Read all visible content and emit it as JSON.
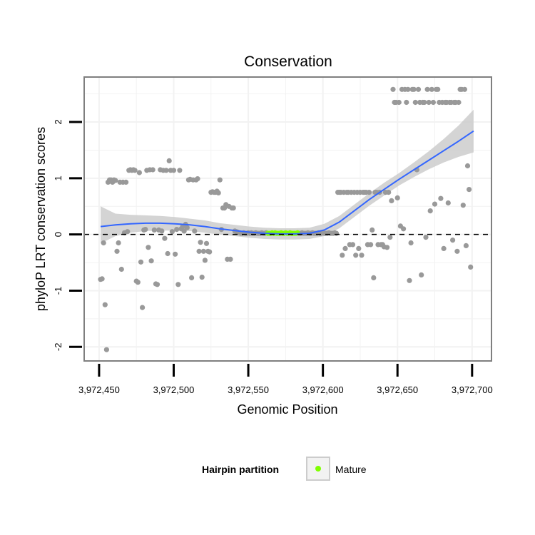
{
  "chart_data": {
    "type": "scatter",
    "title": "Conservation",
    "xlabel": "Genomic Position",
    "ylabel": "phyloP LRT conservation scores",
    "xlim": [
      3972440,
      3972713
    ],
    "ylim": [
      -2.25,
      2.8
    ],
    "xticks": [
      3972450,
      3972500,
      3972550,
      3972600,
      3972650,
      3972700
    ],
    "xtick_labels": [
      "3,972,450",
      "3,972,500",
      "3,972,550",
      "3,972,600",
      "3,972,650",
      "3,972,700"
    ],
    "yticks": [
      -2,
      -1,
      0,
      1,
      2
    ],
    "ytick_labels": [
      "-2",
      "-1",
      "0",
      "1",
      "2"
    ],
    "grid": true,
    "reference_line": {
      "y": 0,
      "style": "dashed"
    },
    "colors": {
      "points": "#999999",
      "mature": "#7fff00",
      "smooth": "#3366ff",
      "band": "#cccccc",
      "panel_border": "#7f7f7f",
      "grid": "#f2f2f2"
    },
    "points": [
      [
        3972451,
        -0.8
      ],
      [
        3972452,
        -0.79
      ],
      [
        3972453,
        -0.15
      ],
      [
        3972454,
        -1.25
      ],
      [
        3972455,
        -2.05
      ],
      [
        3972456,
        0.93
      ],
      [
        3972457,
        0.97
      ],
      [
        3972458,
        0.97
      ],
      [
        3972459,
        0.93
      ],
      [
        3972460,
        0.97
      ],
      [
        3972461,
        0.96
      ],
      [
        3972462,
        -0.3
      ],
      [
        3972463,
        -0.15
      ],
      [
        3972464,
        0.93
      ],
      [
        3972465,
        -0.62
      ],
      [
        3972466,
        0.93
      ],
      [
        3972467,
        0.03
      ],
      [
        3972468,
        0.93
      ],
      [
        3972469,
        0.05
      ],
      [
        3972470,
        1.14
      ],
      [
        3972471,
        1.15
      ],
      [
        3972472,
        1.14
      ],
      [
        3972473,
        1.15
      ],
      [
        3972474,
        1.14
      ],
      [
        3972475,
        -0.83
      ],
      [
        3972476,
        -0.85
      ],
      [
        3972477,
        1.1
      ],
      [
        3972478,
        -0.49
      ],
      [
        3972479,
        -1.3
      ],
      [
        3972480,
        0.08
      ],
      [
        3972481,
        0.09
      ],
      [
        3972482,
        1.14
      ],
      [
        3972483,
        -0.23
      ],
      [
        3972484,
        1.15
      ],
      [
        3972485,
        -0.47
      ],
      [
        3972486,
        1.15
      ],
      [
        3972487,
        0.08
      ],
      [
        3972488,
        -0.88
      ],
      [
        3972489,
        -0.89
      ],
      [
        3972490,
        0.08
      ],
      [
        3972491,
        1.15
      ],
      [
        3972492,
        0.06
      ],
      [
        3972493,
        1.14
      ],
      [
        3972494,
        -0.07
      ],
      [
        3972495,
        1.14
      ],
      [
        3972496,
        -0.34
      ],
      [
        3972497,
        1.31
      ],
      [
        3972498,
        1.14
      ],
      [
        3972499,
        0.05
      ],
      [
        3972500,
        1.14
      ],
      [
        3972501,
        -0.35
      ],
      [
        3972502,
        0.09
      ],
      [
        3972503,
        -0.89
      ],
      [
        3972504,
        1.14
      ],
      [
        3972505,
        0.1
      ],
      [
        3972506,
        0.14
      ],
      [
        3972507,
        0.06
      ],
      [
        3972508,
        0.18
      ],
      [
        3972509,
        0.12
      ],
      [
        3972510,
        0.97
      ],
      [
        3972511,
        0.98
      ],
      [
        3972512,
        -0.77
      ],
      [
        3972513,
        0.97
      ],
      [
        3972514,
        0.06
      ],
      [
        3972515,
        0.97
      ],
      [
        3972516,
        0.99
      ],
      [
        3972517,
        -0.3
      ],
      [
        3972518,
        -0.14
      ],
      [
        3972519,
        -0.76
      ],
      [
        3972520,
        -0.3
      ],
      [
        3972521,
        -0.46
      ],
      [
        3972522,
        -0.16
      ],
      [
        3972523,
        -0.3
      ],
      [
        3972524,
        -0.31
      ],
      [
        3972525,
        0.75
      ],
      [
        3972526,
        0.76
      ],
      [
        3972527,
        0.75
      ],
      [
        3972528,
        0.75
      ],
      [
        3972529,
        0.77
      ],
      [
        3972530,
        0.74
      ],
      [
        3972531,
        0.97
      ],
      [
        3972532,
        0.09
      ],
      [
        3972533,
        0.47
      ],
      [
        3972534,
        0.47
      ],
      [
        3972535,
        0.53
      ],
      [
        3972536,
        -0.44
      ],
      [
        3972537,
        0.5
      ],
      [
        3972538,
        -0.44
      ],
      [
        3972539,
        0.47
      ],
      [
        3972540,
        0.47
      ],
      [
        3972541,
        0.06
      ],
      [
        3972542,
        0.05
      ],
      [
        3972543,
        0.04
      ],
      [
        3972544,
        0.03
      ],
      [
        3972545,
        0.02
      ],
      [
        3972546,
        0.02
      ],
      [
        3972547,
        0.03
      ],
      [
        3972548,
        0.02
      ],
      [
        3972549,
        0.02
      ],
      [
        3972550,
        0.03
      ],
      [
        3972551,
        0.02
      ],
      [
        3972552,
        0.03
      ],
      [
        3972553,
        0.02
      ],
      [
        3972554,
        0.02
      ],
      [
        3972555,
        0.03
      ],
      [
        3972556,
        0.02
      ],
      [
        3972557,
        0.02
      ],
      [
        3972558,
        0.02
      ],
      [
        3972559,
        0.03
      ],
      [
        3972560,
        0.02
      ],
      [
        3972561,
        0.02
      ],
      [
        3972562,
        0.03
      ],
      [
        3972563,
        0.02
      ],
      [
        3972564,
        0.02
      ],
      [
        3972565,
        0.02
      ],
      [
        3972566,
        0.03
      ],
      [
        3972567,
        0.02
      ],
      [
        3972568,
        0.03
      ],
      [
        3972569,
        0.02
      ],
      [
        3972570,
        0.02
      ],
      [
        3972571,
        0.02
      ],
      [
        3972572,
        0.03
      ],
      [
        3972573,
        0.02
      ],
      [
        3972574,
        0.02
      ],
      [
        3972575,
        0.03
      ],
      [
        3972576,
        0.02
      ],
      [
        3972577,
        0.02
      ],
      [
        3972578,
        0.03
      ],
      [
        3972579,
        0.02
      ],
      [
        3972580,
        0.02
      ],
      [
        3972581,
        0.02
      ],
      [
        3972582,
        0.02
      ],
      [
        3972583,
        0.03
      ],
      [
        3972584,
        0.02
      ],
      [
        3972585,
        0.02
      ],
      [
        3972586,
        0.03
      ],
      [
        3972587,
        0.02
      ],
      [
        3972588,
        0.02
      ],
      [
        3972589,
        0.02
      ],
      [
        3972590,
        0.03
      ],
      [
        3972591,
        0.02
      ],
      [
        3972592,
        0.02
      ],
      [
        3972593,
        0.03
      ],
      [
        3972594,
        0.02
      ],
      [
        3972595,
        0.02
      ],
      [
        3972596,
        0.02
      ],
      [
        3972597,
        0.03
      ],
      [
        3972598,
        0.02
      ],
      [
        3972599,
        0.02
      ],
      [
        3972600,
        0.03
      ],
      [
        3972601,
        0.02
      ],
      [
        3972602,
        0.02
      ],
      [
        3972603,
        0.02
      ],
      [
        3972604,
        0.03
      ],
      [
        3972605,
        0.02
      ],
      [
        3972606,
        0.02
      ],
      [
        3972607,
        0.02
      ],
      [
        3972608,
        0.03
      ],
      [
        3972609,
        0.02
      ],
      [
        3972610,
        0.75
      ],
      [
        3972611,
        0.75
      ],
      [
        3972612,
        0.75
      ],
      [
        3972613,
        -0.37
      ],
      [
        3972614,
        0.75
      ],
      [
        3972615,
        -0.25
      ],
      [
        3972616,
        0.75
      ],
      [
        3972617,
        0.75
      ],
      [
        3972618,
        -0.18
      ],
      [
        3972619,
        0.75
      ],
      [
        3972620,
        -0.18
      ],
      [
        3972621,
        0.75
      ],
      [
        3972622,
        -0.37
      ],
      [
        3972623,
        0.75
      ],
      [
        3972624,
        -0.25
      ],
      [
        3972625,
        0.75
      ],
      [
        3972626,
        -0.37
      ],
      [
        3972627,
        0.75
      ],
      [
        3972628,
        0.75
      ],
      [
        3972629,
        0.75
      ],
      [
        3972630,
        -0.18
      ],
      [
        3972631,
        0.75
      ],
      [
        3972632,
        -0.18
      ],
      [
        3972633,
        0.08
      ],
      [
        3972634,
        -0.77
      ],
      [
        3972635,
        0.75
      ],
      [
        3972636,
        0.75
      ],
      [
        3972637,
        -0.18
      ],
      [
        3972638,
        0.75
      ],
      [
        3972639,
        -0.18
      ],
      [
        3972640,
        -0.18
      ],
      [
        3972641,
        -0.22
      ],
      [
        3972642,
        0.75
      ],
      [
        3972643,
        -0.23
      ],
      [
        3972644,
        0.75
      ],
      [
        3972645,
        -0.05
      ],
      [
        3972646,
        0.6
      ],
      [
        3972647,
        2.58
      ],
      [
        3972648,
        2.35
      ],
      [
        3972649,
        2.35
      ],
      [
        3972650,
        0.65
      ],
      [
        3972651,
        2.35
      ],
      [
        3972652,
        0.15
      ],
      [
        3972653,
        2.58
      ],
      [
        3972654,
        0.1
      ],
      [
        3972655,
        2.58
      ],
      [
        3972656,
        2.35
      ],
      [
        3972657,
        2.58
      ],
      [
        3972658,
        -0.82
      ],
      [
        3972659,
        -0.15
      ],
      [
        3972660,
        2.58
      ],
      [
        3972661,
        2.58
      ],
      [
        3972662,
        2.35
      ],
      [
        3972663,
        1.15
      ],
      [
        3972664,
        2.58
      ],
      [
        3972665,
        2.35
      ],
      [
        3972666,
        -0.72
      ],
      [
        3972667,
        2.35
      ],
      [
        3972668,
        2.35
      ],
      [
        3972669,
        -0.05
      ],
      [
        3972670,
        2.58
      ],
      [
        3972671,
        2.35
      ],
      [
        3972672,
        0.42
      ],
      [
        3972673,
        2.58
      ],
      [
        3972674,
        2.35
      ],
      [
        3972675,
        0.54
      ],
      [
        3972676,
        2.58
      ],
      [
        3972677,
        2.58
      ],
      [
        3972678,
        2.35
      ],
      [
        3972679,
        0.64
      ],
      [
        3972680,
        2.35
      ],
      [
        3972681,
        -0.25
      ],
      [
        3972682,
        2.35
      ],
      [
        3972683,
        2.35
      ],
      [
        3972684,
        0.56
      ],
      [
        3972685,
        2.35
      ],
      [
        3972686,
        2.35
      ],
      [
        3972687,
        -0.1
      ],
      [
        3972688,
        2.35
      ],
      [
        3972689,
        2.35
      ],
      [
        3972690,
        -0.3
      ],
      [
        3972691,
        2.35
      ],
      [
        3972692,
        2.58
      ],
      [
        3972693,
        2.58
      ],
      [
        3972694,
        0.52
      ],
      [
        3972695,
        2.58
      ],
      [
        3972696,
        -0.2
      ],
      [
        3972697,
        1.22
      ],
      [
        3972698,
        0.8
      ],
      [
        3972699,
        -0.58
      ]
    ],
    "mature_range": [
      3972563,
      3972583
    ],
    "smooth": {
      "x": [
        3972451,
        3972461,
        3972471,
        3972481,
        3972491,
        3972501,
        3972511,
        3972521,
        3972531,
        3972541,
        3972551,
        3972561,
        3972571,
        3972581,
        3972591,
        3972601,
        3972611,
        3972621,
        3972631,
        3972641,
        3972651,
        3972661,
        3972671,
        3972681,
        3972691,
        3972701
      ],
      "y": [
        0.14,
        0.17,
        0.19,
        0.2,
        0.2,
        0.19,
        0.17,
        0.14,
        0.1,
        0.07,
        0.04,
        0.02,
        0.01,
        0.01,
        0.02,
        0.08,
        0.22,
        0.42,
        0.62,
        0.8,
        0.98,
        1.15,
        1.32,
        1.49,
        1.66,
        1.84
      ],
      "lower": [
        -0.16,
        -0.03,
        0.03,
        0.06,
        0.07,
        0.07,
        0.06,
        0.03,
        0.0,
        -0.03,
        -0.06,
        -0.08,
        -0.09,
        -0.09,
        -0.08,
        -0.03,
        0.11,
        0.31,
        0.51,
        0.69,
        0.87,
        1.02,
        1.16,
        1.28,
        1.38,
        1.46
      ],
      "upper": [
        0.5,
        0.37,
        0.35,
        0.34,
        0.33,
        0.31,
        0.28,
        0.25,
        0.2,
        0.17,
        0.14,
        0.12,
        0.11,
        0.11,
        0.12,
        0.19,
        0.33,
        0.53,
        0.73,
        0.92,
        1.09,
        1.28,
        1.48,
        1.7,
        1.94,
        2.22
      ]
    },
    "legend": {
      "title": "Hairpin partition",
      "items": [
        {
          "label": "Mature",
          "color": "#7fff00"
        }
      ],
      "position": "bottom"
    }
  }
}
